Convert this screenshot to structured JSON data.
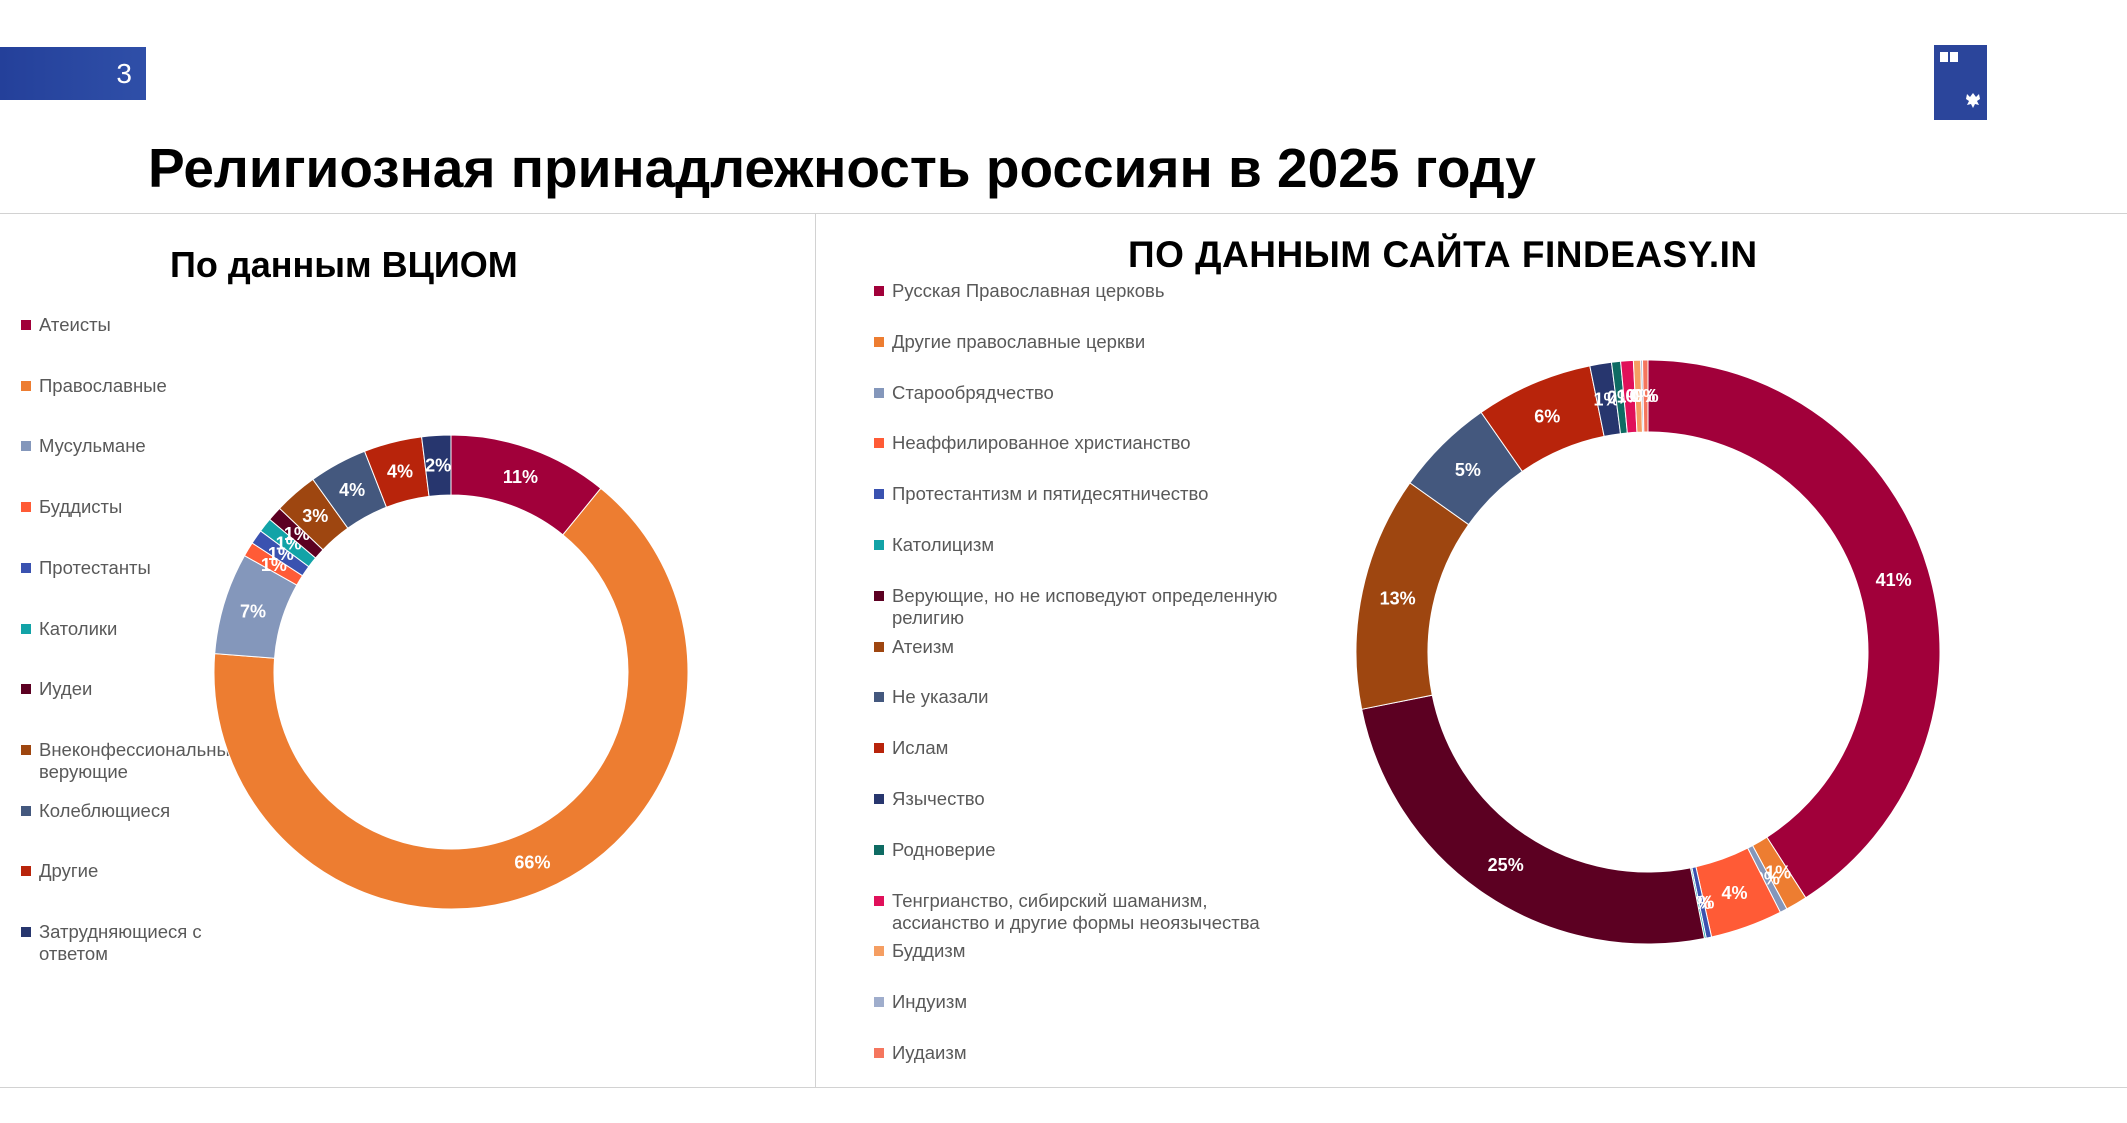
{
  "header": {
    "slide_number": "3",
    "title": "Религиозная принадлежность россиян в 2025 году"
  },
  "chart_data": [
    {
      "type": "pie",
      "title": "По данным ВЦИОМ",
      "series": [
        {
          "name": "Атеисты",
          "value": 11,
          "label": "11%",
          "color": "#a1003a"
        },
        {
          "name": "Православные",
          "value": 66,
          "label": "66%",
          "color": "#ed7d31"
        },
        {
          "name": "Мусульмане",
          "value": 7,
          "label": "7%",
          "color": "#8497bb"
        },
        {
          "name": "Буддисты",
          "value": 1,
          "label": "1%",
          "color": "#ff5b36"
        },
        {
          "name": "Протестанты",
          "value": 1,
          "label": "1%",
          "color": "#3a52b0"
        },
        {
          "name": "Католики",
          "value": 1,
          "label": "1%",
          "color": "#12a3a7"
        },
        {
          "name": "Иудеи",
          "value": 1,
          "label": "1%",
          "color": "#5c0022"
        },
        {
          "name": "Внеконфессиональные верующие",
          "value": 3,
          "label": "3%",
          "color": "#9e4610"
        },
        {
          "name": "Колеблющиеся",
          "value": 4,
          "label": "4%",
          "color": "#44587e"
        },
        {
          "name": "Другие",
          "value": 4,
          "label": "4%",
          "color": "#b8240b"
        },
        {
          "name": "Затрудняющиеся с ответом",
          "value": 2,
          "label": "2%",
          "color": "#27366e"
        }
      ]
    },
    {
      "type": "pie",
      "title": "ПО ДАННЫМ САЙТА FINDEASY.IN",
      "series": [
        {
          "name": "Русская Православная церковь",
          "value": 41,
          "label": "41%",
          "color": "#a1003a"
        },
        {
          "name": "Другие православные церкви",
          "value": 1.2,
          "label": "1%",
          "color": "#ed7d31"
        },
        {
          "name": "Старообрядчество",
          "value": 0.4,
          "label": "0%",
          "color": "#8497bb"
        },
        {
          "name": "Неаффилированное христианство",
          "value": 4,
          "label": "4%",
          "color": "#ff5b36"
        },
        {
          "name": "Протестантизм и пятидесятничество",
          "value": 0.3,
          "label": "0%",
          "color": "#3a52b0"
        },
        {
          "name": "Католицизм",
          "value": 0.1,
          "label": "0%",
          "color": "#12a3a7"
        },
        {
          "name": "Верующие, но не исповедуют определенную религию",
          "value": 25,
          "label": "25%",
          "color": "#5c0022"
        },
        {
          "name": "Атеизм",
          "value": 13,
          "label": "13%",
          "color": "#9e4610"
        },
        {
          "name": "Не указали",
          "value": 5.5,
          "label": "5%",
          "color": "#44587e"
        },
        {
          "name": "Ислам",
          "value": 6.5,
          "label": "6%",
          "color": "#b8240b"
        },
        {
          "name": "Язычество",
          "value": 1.2,
          "label": "1%",
          "color": "#27366e"
        },
        {
          "name": "Родноверие",
          "value": 0.5,
          "label": "0%",
          "color": "#0e6b63"
        },
        {
          "name": "Тенгрианство, сибирский шаманизм, ассианство и другие формы неоязычества",
          "value": 0.7,
          "label": "1%",
          "color": "#e0105a"
        },
        {
          "name": "Буддизм",
          "value": 0.4,
          "label": "0%",
          "color": "#f59e62"
        },
        {
          "name": "Индуизм",
          "value": 0.1,
          "label": "0%",
          "color": "#9fadcc"
        },
        {
          "name": "Иудаизм",
          "value": 0.3,
          "label": "0%",
          "color": "#f5765e"
        }
      ]
    }
  ]
}
